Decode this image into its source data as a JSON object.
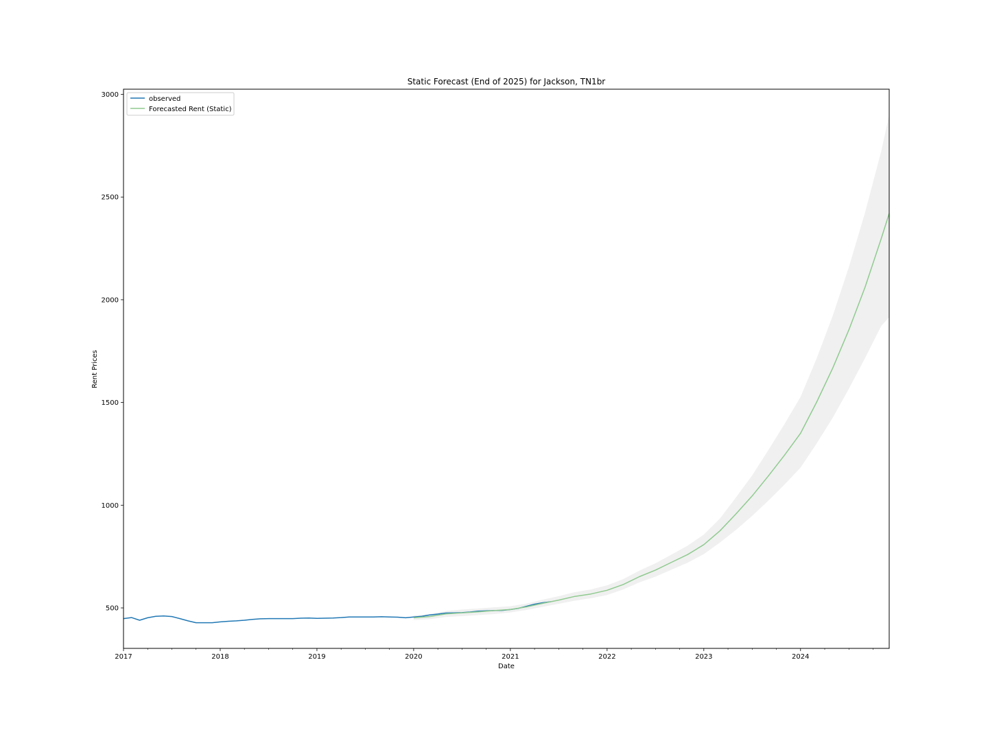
{
  "chart_data": {
    "type": "line",
    "title": "Static Forecast (End of 2025) for Jackson, TN1br",
    "xlabel": "Date",
    "ylabel": "Rent Prices",
    "xlim": [
      "2017-01",
      "2024-12"
    ],
    "ylim": [
      303,
      3025
    ],
    "xticks": [
      {
        "label": "2017",
        "date": "2017-01"
      },
      {
        "label": "2018",
        "date": "2018-01"
      },
      {
        "label": "2019",
        "date": "2019-01"
      },
      {
        "label": "2020",
        "date": "2020-01"
      },
      {
        "label": "2021",
        "date": "2021-01"
      },
      {
        "label": "2022",
        "date": "2022-01"
      },
      {
        "label": "2023",
        "date": "2023-01"
      },
      {
        "label": "2024",
        "date": "2024-01"
      }
    ],
    "yticks": [
      500,
      1000,
      1500,
      2000,
      2500,
      3000
    ],
    "grid": false,
    "legend_position": "top-left",
    "colors": {
      "observed": "#1f77b4",
      "forecast": "#8fca8f",
      "confidence_band": "#ebebeb"
    },
    "series": [
      {
        "name": "observed",
        "x": [
          "2017-01",
          "2017-02",
          "2017-03",
          "2017-04",
          "2017-05",
          "2017-06",
          "2017-07",
          "2017-08",
          "2017-09",
          "2017-10",
          "2017-11",
          "2017-12",
          "2018-01",
          "2018-02",
          "2018-03",
          "2018-04",
          "2018-05",
          "2018-06",
          "2018-07",
          "2018-08",
          "2018-09",
          "2018-10",
          "2018-11",
          "2018-12",
          "2019-01",
          "2019-02",
          "2019-03",
          "2019-04",
          "2019-05",
          "2019-06",
          "2019-07",
          "2019-08",
          "2019-09",
          "2019-10",
          "2019-11",
          "2019-12",
          "2020-01",
          "2020-02",
          "2020-03",
          "2020-04",
          "2020-05",
          "2020-06",
          "2020-07",
          "2020-08",
          "2020-09",
          "2020-10",
          "2020-11",
          "2020-12",
          "2021-01",
          "2021-02",
          "2021-03",
          "2021-04",
          "2021-05",
          "2021-06"
        ],
        "y": [
          448,
          453,
          440,
          452,
          459,
          461,
          458,
          448,
          437,
          428,
          428,
          428,
          432,
          435,
          437,
          440,
          444,
          447,
          448,
          448,
          448,
          448,
          450,
          451,
          449,
          450,
          451,
          453,
          456,
          456,
          456,
          456,
          457,
          456,
          455,
          452,
          456,
          459,
          466,
          470,
          475,
          476,
          477,
          480,
          484,
          486,
          487,
          488,
          492,
          498,
          508,
          518,
          525,
          530
        ]
      },
      {
        "name": "Forecasted Rent (Static)",
        "x": [
          "2020-01",
          "2020-03",
          "2020-05",
          "2020-07",
          "2020-09",
          "2020-11",
          "2021-01",
          "2021-03",
          "2021-05",
          "2021-07",
          "2021-09",
          "2021-11",
          "2022-01",
          "2022-03",
          "2022-05",
          "2022-07",
          "2022-09",
          "2022-11",
          "2023-01",
          "2023-03",
          "2023-05",
          "2023-07",
          "2023-09",
          "2023-11",
          "2024-01",
          "2024-03",
          "2024-05",
          "2024-07",
          "2024-09",
          "2024-11",
          "2024-12"
        ],
        "y": [
          452,
          458,
          471,
          476,
          481,
          487,
          492,
          505,
          522,
          538,
          556,
          568,
          586,
          614,
          652,
          684,
          722,
          760,
          808,
          875,
          958,
          1045,
          1142,
          1243,
          1350,
          1502,
          1668,
          1854,
          2061,
          2297,
          2420
        ],
        "lower": [
          441,
          445,
          456,
          460,
          465,
          470,
          478,
          490,
          505,
          520,
          535,
          547,
          563,
          590,
          624,
          652,
          686,
          720,
          762,
          818,
          880,
          948,
          1022,
          1100,
          1183,
          1301,
          1426,
          1567,
          1716,
          1872,
          1915
        ],
        "upper": [
          463,
          470,
          485,
          492,
          497,
          503,
          508,
          521,
          540,
          557,
          577,
          590,
          610,
          640,
          681,
          717,
          760,
          803,
          857,
          935,
          1038,
          1145,
          1268,
          1394,
          1527,
          1715,
          1923,
          2160,
          2424,
          2722,
          2900
        ]
      }
    ]
  }
}
